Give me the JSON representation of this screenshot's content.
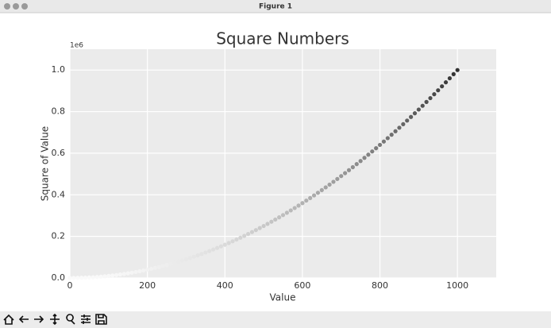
{
  "window_title": "Figure 1",
  "chart_data": {
    "type": "scatter",
    "title": "Square Numbers",
    "xlabel": "Value",
    "ylabel": "Square of Value",
    "y_offset_label": "1e6",
    "colormap": "Greys",
    "grid": true,
    "xlim": [
      0,
      1100
    ],
    "ylim": [
      0,
      1100000
    ],
    "xticks": [
      0,
      200,
      400,
      600,
      800,
      1000
    ],
    "yticks": [
      {
        "value": 0,
        "label": "0.0"
      },
      {
        "value": 200000,
        "label": "0.2"
      },
      {
        "value": 400000,
        "label": "0.4"
      },
      {
        "value": 600000,
        "label": "0.6"
      },
      {
        "value": 800000,
        "label": "0.8"
      },
      {
        "value": 1000000,
        "label": "1.0"
      }
    ],
    "x": [
      0,
      10,
      20,
      30,
      40,
      50,
      60,
      70,
      80,
      90,
      100,
      110,
      120,
      130,
      140,
      150,
      160,
      170,
      180,
      190,
      200,
      210,
      220,
      230,
      240,
      250,
      260,
      270,
      280,
      290,
      300,
      310,
      320,
      330,
      340,
      350,
      360,
      370,
      380,
      390,
      400,
      410,
      420,
      430,
      440,
      450,
      460,
      470,
      480,
      490,
      500,
      510,
      520,
      530,
      540,
      550,
      560,
      570,
      580,
      590,
      600,
      610,
      620,
      630,
      640,
      650,
      660,
      670,
      680,
      690,
      700,
      710,
      720,
      730,
      740,
      750,
      760,
      770,
      780,
      790,
      800,
      810,
      820,
      830,
      840,
      850,
      860,
      870,
      880,
      890,
      900,
      910,
      920,
      930,
      940,
      950,
      960,
      970,
      980,
      990,
      1000
    ],
    "values": [
      0,
      100,
      400,
      900,
      1600,
      2500,
      3600,
      4900,
      6400,
      8100,
      10000,
      12100,
      14400,
      16900,
      19600,
      22500,
      25600,
      28900,
      32400,
      36100,
      40000,
      44100,
      48400,
      52900,
      57600,
      62500,
      67600,
      72900,
      78400,
      84100,
      90000,
      96100,
      102400,
      108900,
      115600,
      122500,
      129600,
      136900,
      144400,
      152100,
      160000,
      168100,
      176400,
      184900,
      193600,
      202500,
      211600,
      220900,
      230400,
      240100,
      250000,
      260100,
      270400,
      280900,
      291600,
      302500,
      313600,
      324900,
      336400,
      348100,
      360000,
      372100,
      384400,
      396900,
      409600,
      422500,
      435600,
      448900,
      462400,
      476100,
      490000,
      504100,
      518400,
      532900,
      547600,
      562500,
      577600,
      592900,
      608400,
      624100,
      640000,
      656100,
      672400,
      688900,
      705600,
      722500,
      739600,
      756900,
      774400,
      792100,
      810000,
      828100,
      846400,
      864900,
      883600,
      902500,
      921600,
      940900,
      960400,
      980100,
      1000000
    ]
  }
}
